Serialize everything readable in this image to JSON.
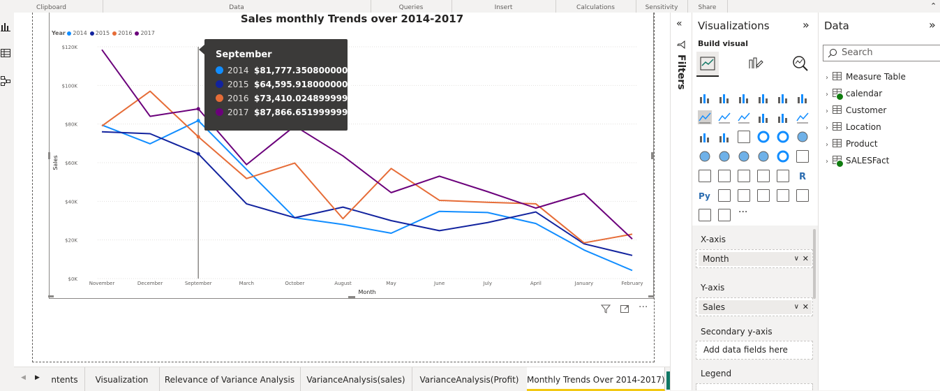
{
  "ribbon": {
    "groups": [
      "Clipboard",
      "Data",
      "Queries",
      "Insert",
      "Calculations",
      "Sensitivity",
      "Share"
    ]
  },
  "left_rail": {
    "icons": [
      "report-view-icon",
      "table-view-icon",
      "model-view-icon"
    ]
  },
  "visual": {
    "title": "Sales monthly Trends over 2014-2017",
    "legend_title": "Year",
    "legend": [
      {
        "label": "2014",
        "color": "#118DFF"
      },
      {
        "label": "2015",
        "color": "#12239E"
      },
      {
        "label": "2016",
        "color": "#E66C37"
      },
      {
        "label": "2017",
        "color": "#6B007B"
      }
    ],
    "tooltip": {
      "title": "September",
      "rows": [
        {
          "year": "2014",
          "value": "$81,777.35080000003",
          "color": "#118DFF"
        },
        {
          "year": "2015",
          "value": "$64,595.91800000001",
          "color": "#12239E"
        },
        {
          "year": "2016",
          "value": "$73,410.02489999995",
          "color": "#E66C37"
        },
        {
          "year": "2017",
          "value": "$87,866.65199999983",
          "color": "#6B007B"
        }
      ]
    }
  },
  "chart_data": {
    "type": "line",
    "title": "Sales monthly Trends over 2014-2017",
    "xlabel": "Month",
    "ylabel": "Sales",
    "categories": [
      "November",
      "December",
      "September",
      "March",
      "October",
      "August",
      "May",
      "June",
      "July",
      "April",
      "January",
      "February"
    ],
    "yticks": [
      "$0K",
      "$20K",
      "$40K",
      "$60K",
      "$80K",
      "$100K",
      "$120K"
    ],
    "ylim": [
      0,
      120000
    ],
    "grid": true,
    "legend_position": "top-left",
    "series": [
      {
        "name": "2014",
        "color": "#118DFF",
        "values": [
          79500,
          69800,
          81777,
          56500,
          31500,
          28000,
          23500,
          34800,
          34200,
          28500,
          14800,
          4200
        ]
      },
      {
        "name": "2015",
        "color": "#12239E",
        "values": [
          76000,
          75000,
          64596,
          38700,
          31500,
          37000,
          30000,
          24800,
          29000,
          34500,
          18000,
          12000
        ]
      },
      {
        "name": "2016",
        "color": "#E66C37",
        "values": [
          79000,
          97000,
          73410,
          51800,
          59800,
          31000,
          57000,
          40500,
          39500,
          38700,
          18500,
          23000
        ]
      },
      {
        "name": "2017",
        "color": "#6B007B",
        "values": [
          118500,
          84000,
          87867,
          59000,
          79000,
          63500,
          44500,
          53000,
          45000,
          36500,
          44000,
          20500
        ]
      }
    ]
  },
  "page_tabs": [
    {
      "label": "ntents"
    },
    {
      "label": "Visualization"
    },
    {
      "label": "Relevance of Variance Analysis"
    },
    {
      "label": "VarianceAnalysis(sales)"
    },
    {
      "label": "VarianceAnalysis(Profit)"
    },
    {
      "label": "Monthly Trends Over 2014-2017)",
      "active": true
    }
  ],
  "add_page": "+",
  "filters": {
    "label": "Filters"
  },
  "viz_pane": {
    "title": "Visualizations",
    "build_visual": "Build visual",
    "more": "···",
    "wells": [
      {
        "label": "X-axis",
        "field": "Month"
      },
      {
        "label": "Y-axis",
        "field": "Sales"
      },
      {
        "label": "Secondary y-axis",
        "placeholder": "Add data fields here"
      },
      {
        "label": "Legend"
      }
    ]
  },
  "data_pane": {
    "title": "Data",
    "search_placeholder": "Search",
    "tables": [
      {
        "name": "Measure Table",
        "badge": false
      },
      {
        "name": "calendar",
        "badge": true
      },
      {
        "name": "Customer",
        "badge": false
      },
      {
        "name": "Location",
        "badge": false
      },
      {
        "name": "Product",
        "badge": false
      },
      {
        "name": "SALESFact",
        "badge": true
      }
    ]
  }
}
